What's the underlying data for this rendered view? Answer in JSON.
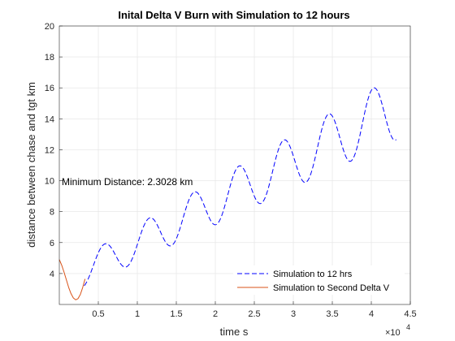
{
  "chart_data": {
    "type": "line",
    "title": "Inital Delta V Burn with Simulation to 12 hours",
    "xlabel": "time s",
    "ylabel": "distance between chase and tgt km",
    "x_exponent_label": "×10",
    "x_exponent_power": "4",
    "x_scale": 10000,
    "xlim": [
      0,
      4.5
    ],
    "ylim": [
      2,
      20
    ],
    "grid": true,
    "x_tick_values": [
      0.5,
      1,
      1.5,
      2,
      2.5,
      3,
      3.5,
      4,
      4.5
    ],
    "x_ticks": [
      "0.5",
      "1",
      "1.5",
      "2",
      "2.5",
      "3",
      "3.5",
      "4",
      "4.5"
    ],
    "y_tick_values": [
      4,
      6,
      8,
      10,
      12,
      14,
      16,
      18,
      20
    ],
    "y_ticks": [
      "4",
      "6",
      "8",
      "10",
      "12",
      "14",
      "16",
      "18",
      "20"
    ],
    "annotation": "Minimum Distance: 2.3028 km",
    "legend_position": "bottom-right",
    "series": [
      {
        "name": "Simulation to 12 hrs",
        "color": "#0000ff",
        "style": "dashed",
        "model": {
          "type": "growing_oscillation",
          "offset": 3.3,
          "trend_per_unit": 2.65,
          "amp_start": 1.0,
          "amp_end": 2.1,
          "period": 0.575,
          "phase_peak": 0.575,
          "x_start": 0.32,
          "x_end": 4.32,
          "x_end_value": 17.3
        }
      },
      {
        "name": "Simulation to Second Delta V",
        "color": "#d95319",
        "style": "solid",
        "x": [
          0.0,
          0.03,
          0.06,
          0.09,
          0.12,
          0.15,
          0.18,
          0.21,
          0.24,
          0.27,
          0.3,
          0.33
        ],
        "y": [
          4.9,
          4.55,
          4.1,
          3.6,
          3.1,
          2.7,
          2.42,
          2.3,
          2.38,
          2.65,
          3.1,
          3.65
        ]
      }
    ]
  }
}
